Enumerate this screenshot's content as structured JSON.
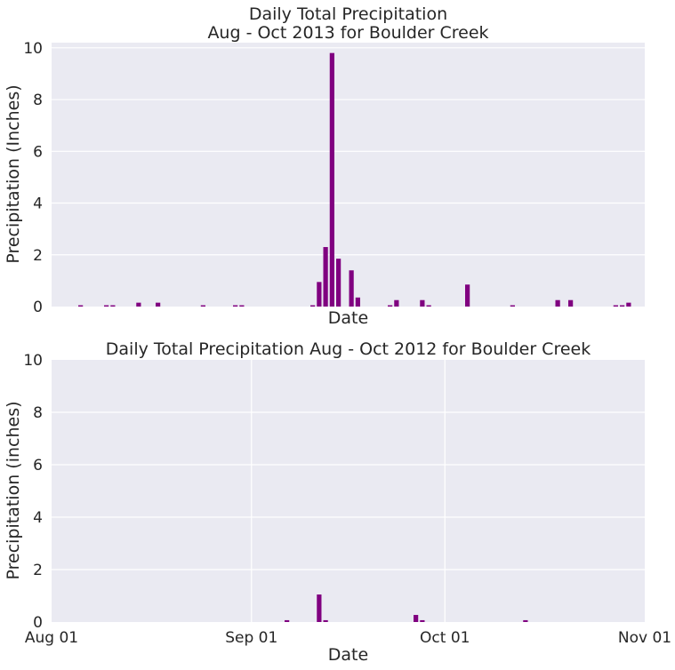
{
  "colors": {
    "bar": "#800080",
    "background": "#eaeaf2",
    "grid": "#ffffff",
    "text": "#262626"
  },
  "chart_data": [
    {
      "type": "bar",
      "title": [
        "Daily Total Precipitation",
        "Aug - Oct 2013 for Boulder Creek"
      ],
      "xlabel": "Date",
      "ylabel": "Precipitation (Inches)",
      "xlim": [
        "2013-08-01",
        "2013-11-01"
      ],
      "ylim": [
        0,
        10.2
      ],
      "yticks": [
        "0",
        "2",
        "4",
        "6",
        "8",
        "10"
      ],
      "xgrid": false,
      "show_xticklabels": false,
      "points": [
        {
          "date": "2013-08-05",
          "value": 0.05
        },
        {
          "date": "2013-08-09",
          "value": 0.05
        },
        {
          "date": "2013-08-10",
          "value": 0.05
        },
        {
          "date": "2013-08-14",
          "value": 0.15
        },
        {
          "date": "2013-08-17",
          "value": 0.15
        },
        {
          "date": "2013-08-24",
          "value": 0.05
        },
        {
          "date": "2013-08-29",
          "value": 0.05
        },
        {
          "date": "2013-08-30",
          "value": 0.05
        },
        {
          "date": "2013-09-10",
          "value": 0.05
        },
        {
          "date": "2013-09-11",
          "value": 0.95
        },
        {
          "date": "2013-09-12",
          "value": 2.3
        },
        {
          "date": "2013-09-13",
          "value": 9.8
        },
        {
          "date": "2013-09-14",
          "value": 1.85
        },
        {
          "date": "2013-09-16",
          "value": 1.4
        },
        {
          "date": "2013-09-17",
          "value": 0.35
        },
        {
          "date": "2013-09-22",
          "value": 0.05
        },
        {
          "date": "2013-09-23",
          "value": 0.25
        },
        {
          "date": "2013-09-27",
          "value": 0.25
        },
        {
          "date": "2013-09-28",
          "value": 0.05
        },
        {
          "date": "2013-10-04",
          "value": 0.85
        },
        {
          "date": "2013-10-11",
          "value": 0.05
        },
        {
          "date": "2013-10-18",
          "value": 0.25
        },
        {
          "date": "2013-10-20",
          "value": 0.25
        },
        {
          "date": "2013-10-27",
          "value": 0.05
        },
        {
          "date": "2013-10-28",
          "value": 0.05
        },
        {
          "date": "2013-10-29",
          "value": 0.15
        }
      ]
    },
    {
      "type": "bar",
      "title": [
        "Daily Total Precipitation Aug - Oct 2012 for Boulder Creek"
      ],
      "xlabel": "Date",
      "ylabel": "Precipitation (inches)",
      "xlim": [
        "2012-08-01",
        "2012-11-01"
      ],
      "ylim": [
        0,
        10
      ],
      "yticks": [
        "0",
        "2",
        "4",
        "6",
        "8",
        "10"
      ],
      "xgrid": true,
      "show_xticklabels": true,
      "xticks": [
        {
          "date": "2012-08-01",
          "label": "Aug 01"
        },
        {
          "date": "2012-09-01",
          "label": "Sep 01"
        },
        {
          "date": "2012-10-01",
          "label": "Oct 01"
        },
        {
          "date": "2012-11-01",
          "label": "Nov 01"
        }
      ],
      "points": [
        {
          "date": "2012-09-06",
          "value": 0.07
        },
        {
          "date": "2012-09-11",
          "value": 1.05
        },
        {
          "date": "2012-09-12",
          "value": 0.07
        },
        {
          "date": "2012-09-26",
          "value": 0.27
        },
        {
          "date": "2012-09-27",
          "value": 0.07
        },
        {
          "date": "2012-10-13",
          "value": 0.07
        }
      ]
    }
  ]
}
